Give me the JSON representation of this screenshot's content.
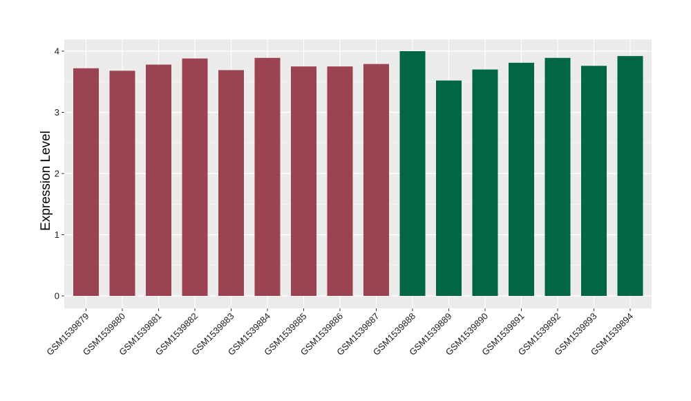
{
  "chart_data": {
    "type": "bar",
    "title": "",
    "xlabel": "",
    "ylabel": "Expression Level",
    "ylim": [
      0,
      4.2
    ],
    "yticks": [
      0,
      1,
      2,
      3,
      4
    ],
    "grid": true,
    "legend": "none",
    "categories": [
      "GSM1539879",
      "GSM1539880",
      "GSM1539881",
      "GSM1539882",
      "GSM1539883",
      "GSM1539884",
      "GSM1539885",
      "GSM1539886",
      "GSM1539887",
      "GSM1539888",
      "GSM1539889",
      "GSM1539890",
      "GSM1539891",
      "GSM1539892",
      "GSM1539893",
      "GSM1539894"
    ],
    "values": [
      3.72,
      3.68,
      3.78,
      3.88,
      3.69,
      3.89,
      3.75,
      3.75,
      3.79,
      4.0,
      3.52,
      3.7,
      3.81,
      3.89,
      3.76,
      3.92
    ],
    "groups": [
      "A",
      "A",
      "A",
      "A",
      "A",
      "A",
      "A",
      "A",
      "A",
      "B",
      "B",
      "B",
      "B",
      "B",
      "B",
      "B"
    ],
    "colors": {
      "A": "#9b4350",
      "B": "#006644"
    },
    "panel_background": "#ebebeb",
    "grid_color": "#ffffff"
  }
}
